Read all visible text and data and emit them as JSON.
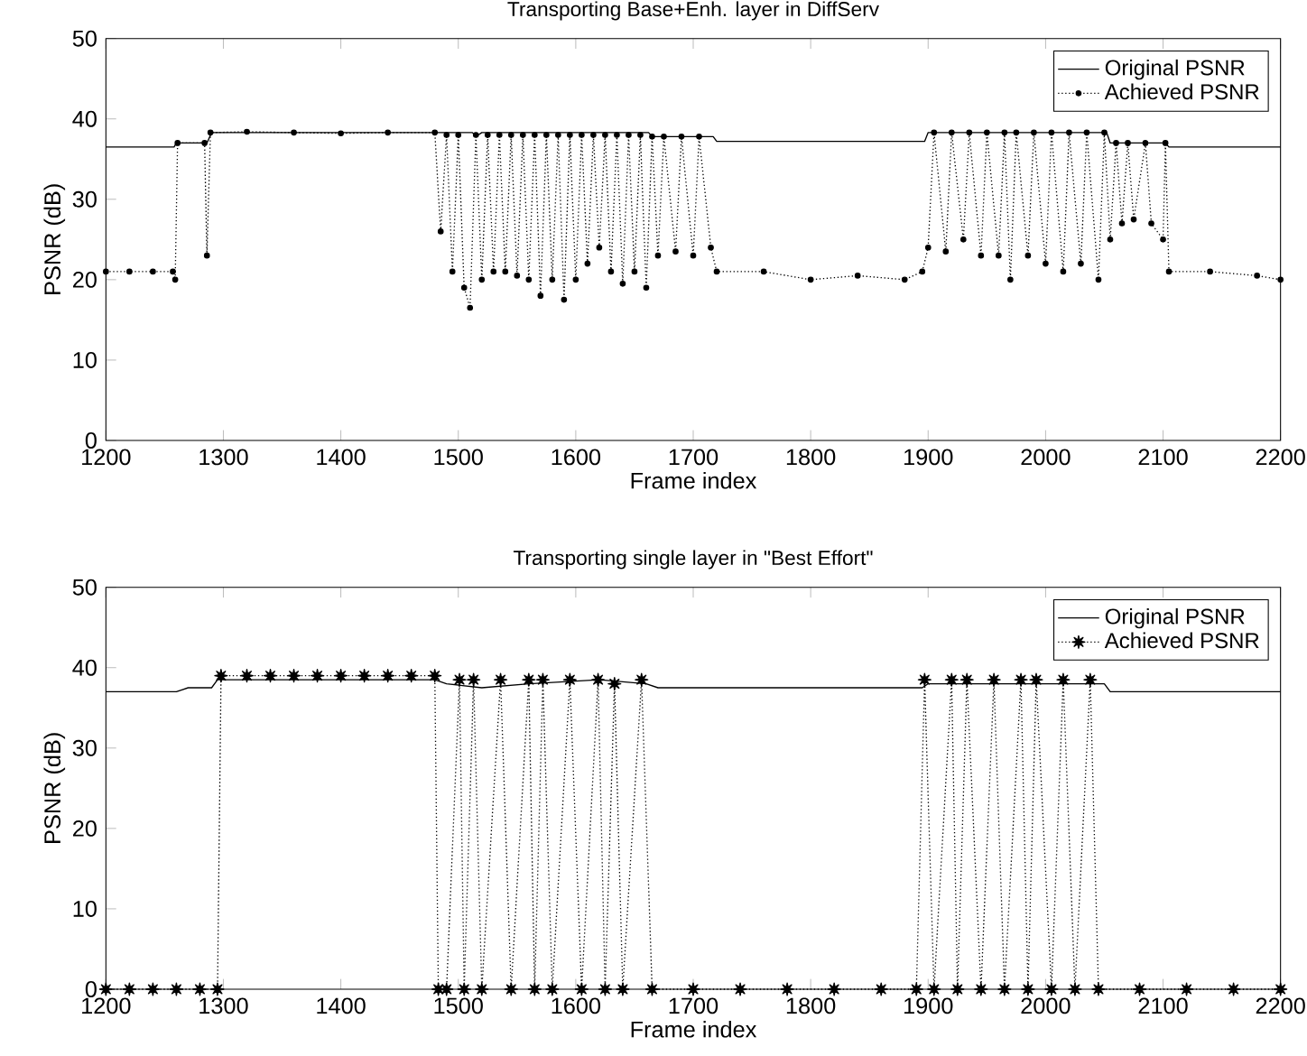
{
  "chart_data": [
    {
      "type": "line",
      "title": "Transporting Base+Enh. layer in DiffServ",
      "xlabel": "Frame index",
      "ylabel": "PSNR (dB)",
      "xlim": [
        1200,
        2200
      ],
      "ylim": [
        0,
        50
      ],
      "xticks": [
        1200,
        1300,
        1400,
        1500,
        1600,
        1700,
        1800,
        1900,
        2000,
        2100,
        2200
      ],
      "yticks": [
        0,
        10,
        20,
        30,
        40,
        50
      ],
      "legend": "top right",
      "series": [
        {
          "name": "Original PSNR",
          "color": "#000000",
          "marker": "none",
          "line_style": "solid",
          "x": [
            1200,
            1258,
            1260,
            1286,
            1290,
            1512,
            1515,
            1520,
            1662,
            1665,
            1717,
            1720,
            1897,
            1900,
            2052,
            2055,
            2102,
            2105,
            2200
          ],
          "values": [
            36.5,
            36.5,
            37,
            37,
            38.3,
            38.3,
            37.8,
            38.3,
            38.3,
            37.8,
            37.8,
            37.2,
            37.2,
            38.3,
            38.3,
            37,
            37,
            36.5,
            36.5
          ]
        },
        {
          "name": "Achieved PSNR",
          "color": "#000000",
          "marker": "circle",
          "line_style": "dotted",
          "x": [
            1200,
            1220,
            1240,
            1257,
            1259,
            1261,
            1284,
            1286,
            1289,
            1320,
            1360,
            1400,
            1440,
            1480,
            1485,
            1490,
            1495,
            1500,
            1505,
            1510,
            1515,
            1520,
            1525,
            1530,
            1535,
            1540,
            1545,
            1550,
            1555,
            1560,
            1565,
            1570,
            1575,
            1580,
            1585,
            1590,
            1595,
            1600,
            1605,
            1610,
            1615,
            1620,
            1625,
            1630,
            1635,
            1640,
            1645,
            1650,
            1655,
            1660,
            1665,
            1670,
            1675,
            1685,
            1690,
            1700,
            1705,
            1715,
            1720,
            1760,
            1800,
            1840,
            1880,
            1895,
            1900,
            1905,
            1915,
            1920,
            1930,
            1935,
            1945,
            1950,
            1960,
            1965,
            1970,
            1975,
            1985,
            1990,
            2000,
            2005,
            2015,
            2020,
            2030,
            2035,
            2045,
            2050,
            2055,
            2060,
            2065,
            2070,
            2075,
            2085,
            2090,
            2100,
            2102,
            2105,
            2140,
            2180,
            2200
          ],
          "values": [
            21,
            21,
            21,
            21,
            20,
            37,
            37,
            23,
            38.3,
            38.4,
            38.3,
            38.2,
            38.3,
            38.3,
            26,
            38,
            21,
            38,
            19,
            16.5,
            38,
            20,
            38,
            21,
            38,
            21,
            38,
            20.5,
            38,
            20,
            38,
            18,
            38,
            20,
            38,
            17.5,
            38,
            20,
            38,
            22,
            38,
            24,
            38,
            21,
            38,
            19.5,
            38,
            21,
            38,
            19,
            37.8,
            23,
            37.8,
            23.5,
            37.8,
            23,
            37.8,
            24,
            21,
            21,
            20,
            20.5,
            20,
            21,
            24,
            38.3,
            23.5,
            38.3,
            25,
            38.3,
            23,
            38.3,
            23,
            38.3,
            20,
            38.3,
            23,
            38.3,
            22,
            38.3,
            21,
            38.3,
            22,
            38.3,
            20,
            38.3,
            25,
            37,
            27,
            37,
            27.5,
            37,
            27,
            25,
            37,
            21,
            21,
            20.5,
            20
          ]
        }
      ]
    },
    {
      "type": "line",
      "title": "Transporting single layer in \"Best Effort\"",
      "xlabel": "Frame index",
      "ylabel": "PSNR (dB)",
      "xlim": [
        1200,
        2200
      ],
      "ylim": [
        0,
        50
      ],
      "xticks": [
        1200,
        1300,
        1400,
        1500,
        1600,
        1700,
        1800,
        1900,
        2000,
        2100,
        2200
      ],
      "yticks": [
        0,
        10,
        20,
        30,
        40,
        50
      ],
      "legend": "top right",
      "series": [
        {
          "name": "Original PSNR",
          "color": "#000000",
          "marker": "none",
          "line_style": "solid",
          "x": [
            1200,
            1260,
            1270,
            1290,
            1295,
            1480,
            1490,
            1520,
            1560,
            1620,
            1660,
            1670,
            1895,
            1900,
            2050,
            2055,
            2200
          ],
          "values": [
            37,
            37,
            37.5,
            37.5,
            38.5,
            38.5,
            38,
            37.5,
            38,
            38.5,
            38,
            37.5,
            37.5,
            38,
            38,
            37,
            37
          ]
        },
        {
          "name": "Achieved PSNR",
          "color": "#000000",
          "marker": "star",
          "line_style": "dotted",
          "x": [
            1200,
            1220,
            1240,
            1260,
            1280,
            1295,
            1298,
            1320,
            1340,
            1360,
            1380,
            1400,
            1420,
            1440,
            1460,
            1480,
            1483,
            1490,
            1501,
            1505,
            1513,
            1520,
            1536,
            1545,
            1560,
            1565,
            1572,
            1580,
            1595,
            1605,
            1619,
            1625,
            1633,
            1640,
            1656,
            1665,
            1700,
            1740,
            1780,
            1820,
            1860,
            1890,
            1897,
            1905,
            1920,
            1925,
            1933,
            1945,
            1956,
            1965,
            1979,
            1985,
            1992,
            2005,
            2015,
            2025,
            2038,
            2045,
            2080,
            2120,
            2160,
            2200
          ],
          "values": [
            0,
            0,
            0,
            0,
            0,
            0,
            39,
            39,
            39,
            39,
            39,
            39,
            39,
            39,
            39,
            39,
            0,
            0,
            38.5,
            0,
            38.5,
            0,
            38.5,
            0,
            38.5,
            0,
            38.5,
            0,
            38.5,
            0,
            38.5,
            0,
            38,
            0,
            38.5,
            0,
            0,
            0,
            0,
            0,
            0,
            0,
            38.5,
            0,
            38.5,
            0,
            38.5,
            0,
            38.5,
            0,
            38.5,
            0,
            38.5,
            0,
            38.5,
            0,
            38.5,
            0,
            0,
            0,
            0,
            0
          ]
        }
      ]
    }
  ]
}
